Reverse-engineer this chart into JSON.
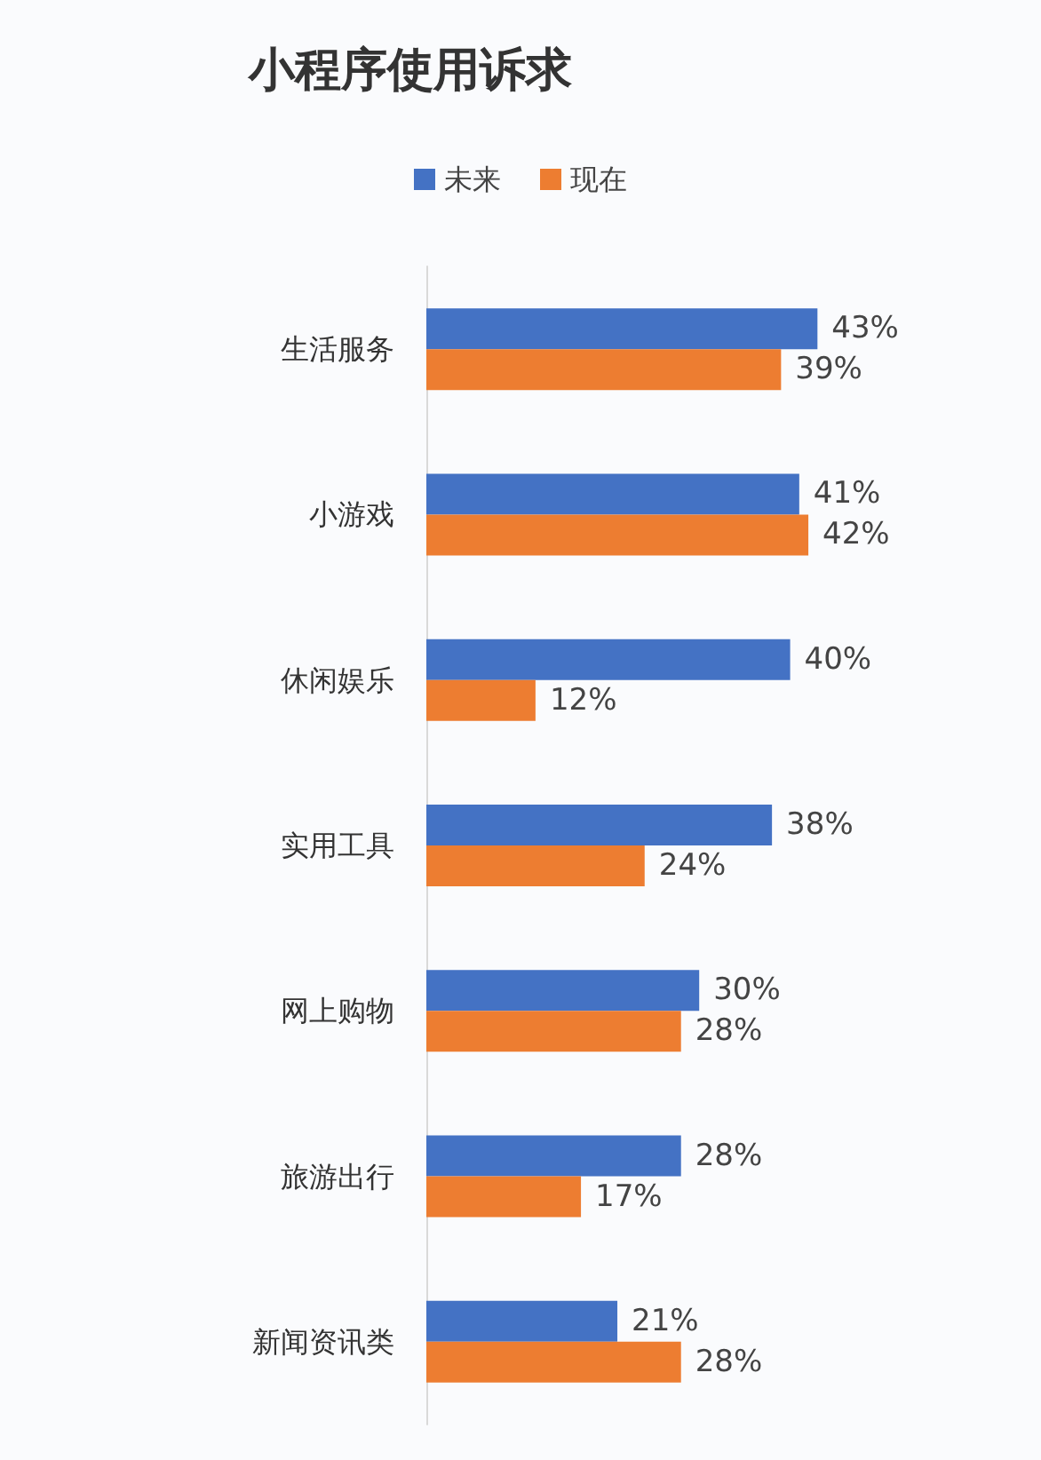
{
  "chart_data": {
    "type": "bar",
    "orientation": "horizontal",
    "title": "小程序使用诉求",
    "legend": "top",
    "categories": [
      "生活服务",
      "小游戏",
      "休闲娱乐",
      "实用工具",
      "网上购物",
      "旅游出行",
      "新闻资讯类"
    ],
    "series": [
      {
        "name": "未来",
        "color": "#4472c4",
        "values": [
          43,
          41,
          40,
          38,
          30,
          28,
          21
        ],
        "value_labels": [
          "43%",
          "41%",
          "40%",
          "38%",
          "30%",
          "28%",
          "21%"
        ]
      },
      {
        "name": "现在",
        "color": "#ed7d31",
        "values": [
          39,
          42,
          12,
          24,
          28,
          17,
          28
        ],
        "value_labels": [
          "39%",
          "42%",
          "12%",
          "24%",
          "28%",
          "17%",
          "28%"
        ]
      }
    ],
    "grid": false
  }
}
